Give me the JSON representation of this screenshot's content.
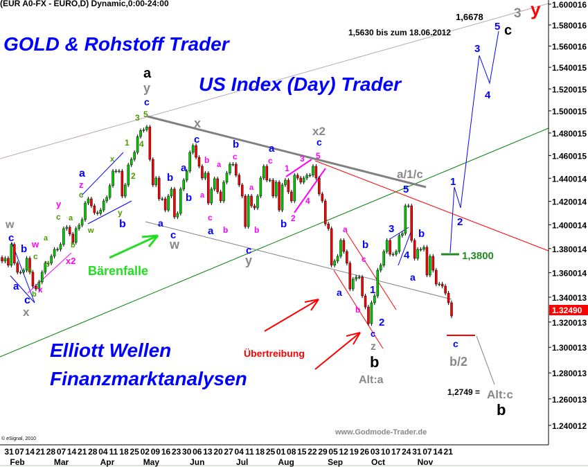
{
  "header": {
    "title": "(EUR A0-FX - EURO,D) Dynamic,0:00-24:00"
  },
  "titles": {
    "gold": "GOLD & Rohstoff Trader",
    "us_index": "US Index (Day) Trader",
    "elliott": "Elliott Wellen",
    "finanz": "Finanzmarktanalysen"
  },
  "copyright": "© eSignal, 2010",
  "watermark": "www.Godmode-Trader.de",
  "colors": {
    "up": "#00cc00",
    "down": "#ff0000",
    "blue": "#0000ff",
    "magenta": "#ff00ff",
    "gray": "#888888",
    "olive": "#4c9900",
    "red": "#ff0000",
    "green": "#008000"
  },
  "chart_data": {
    "type": "candlestick",
    "symbol": "EUR A0-FX",
    "yscale": "log",
    "ylim": [
      1.23,
      1.605
    ],
    "yticks": [
      "1.600016",
      "1.580016",
      "1.560016",
      "1.540015",
      "1.520015",
      "1.500015",
      "1.480015",
      "1.460015",
      "1.440014",
      "1.420014",
      "1.400014",
      "1.380014",
      "1.360014",
      "1.340013",
      "1.320013",
      "1.300013",
      "1.280013",
      "1.260013",
      "1.240012"
    ],
    "last_price": "1.32490",
    "xtick_days": [
      "31",
      "07",
      "14",
      "21",
      "28",
      "07",
      "14",
      "21",
      "28",
      "04",
      "11",
      "18",
      "25",
      "02",
      "09",
      "16",
      "23",
      "30",
      "06",
      "13",
      "20",
      "27",
      "04",
      "11",
      "18",
      "25",
      "01",
      "08",
      "15",
      "22",
      "29",
      "05",
      "12",
      "19",
      "26",
      "03",
      "10",
      "17",
      "24",
      "31",
      "07",
      "14",
      "21"
    ],
    "months": [
      "Feb",
      "Mar",
      "Apr",
      "May",
      "Jun",
      "Jul",
      "Aug",
      "Sep",
      "Oct",
      "Nov"
    ],
    "closes": [
      1.3696,
      1.3719,
      1.3662,
      1.3835,
      1.3679,
      1.3604,
      1.3604,
      1.3621,
      1.3719,
      1.3604,
      1.349,
      1.3467,
      1.3524,
      1.3604,
      1.3679,
      1.3679,
      1.3736,
      1.3794,
      1.3794,
      1.3835,
      1.3968,
      1.398,
      1.3922,
      1.3852,
      1.3968,
      1.3997,
      1.4044,
      1.4186,
      1.4222,
      1.4162,
      1.4103,
      1.4097,
      1.4126,
      1.4204,
      1.4234,
      1.4336,
      1.4463,
      1.4463,
      1.4463,
      1.4246,
      1.4342,
      1.4517,
      1.4566,
      1.4627,
      1.4768,
      1.4823,
      1.483,
      1.4855,
      1.4566,
      1.4342,
      1.4402,
      1.4222,
      1.4222,
      1.4126,
      1.4246,
      1.4306,
      1.4067,
      1.4097,
      1.4306,
      1.4384,
      1.4463,
      1.4627,
      1.4688,
      1.4584,
      1.4505,
      1.4402,
      1.4445,
      1.4186,
      1.4306,
      1.4396,
      1.4282,
      1.4204,
      1.4366,
      1.4445,
      1.4523,
      1.4523,
      1.4427,
      1.4342,
      1.4246,
      1.3985,
      1.4246,
      1.4162,
      1.4144,
      1.4246,
      1.4402,
      1.4505,
      1.4384,
      1.4384,
      1.4246,
      1.4366,
      1.4126,
      1.4342,
      1.4384,
      1.4282,
      1.4204,
      1.4427,
      1.4402,
      1.4366,
      1.4402,
      1.4427,
      1.4427,
      1.4505,
      1.4402,
      1.4264,
      1.4204,
      1.4008,
      1.3968,
      1.3662,
      1.3696,
      1.3736,
      1.3869,
      1.3776,
      1.3679,
      1.3467,
      1.3547,
      1.3564,
      1.3564,
      1.3411,
      1.3321,
      1.3188,
      1.3355,
      1.3411,
      1.3621,
      1.3662,
      1.3776,
      1.3869,
      1.3753,
      1.3753,
      1.3776,
      1.391,
      1.3927,
      1.4162,
      1.4162,
      1.3869,
      1.3719,
      1.3794,
      1.3794,
      1.3811,
      1.3581,
      1.3736,
      1.3621,
      1.3507,
      1.3507,
      1.349,
      1.3433,
      1.3355,
      1.3249
    ]
  },
  "annotations": [
    {
      "text": "w",
      "color": "#888888"
    },
    {
      "text": "c",
      "color": "#0000ff"
    },
    {
      "text": "b",
      "color": "#0000ff"
    },
    {
      "text": "a",
      "color": "#0000ff"
    },
    {
      "text": "c",
      "color": "#0000ff"
    },
    {
      "text": "x",
      "color": "#888888"
    },
    {
      "text": "b",
      "color": "#4c9900"
    },
    {
      "text": "a",
      "color": "#4c9900"
    },
    {
      "text": "x",
      "color": "#ff00ff"
    },
    {
      "text": "w",
      "color": "#ff00ff"
    },
    {
      "text": "c",
      "color": "#4c9900"
    },
    {
      "text": "b",
      "color": "#4c9900"
    },
    {
      "text": "x2",
      "color": "#ff00ff"
    },
    {
      "text": "a",
      "color": "#4c9900"
    },
    {
      "text": "y",
      "color": "#ff00ff"
    },
    {
      "text": "c",
      "color": "#4c9900"
    },
    {
      "text": "a",
      "color": "#4c9900"
    },
    {
      "text": "b",
      "color": "#4c9900"
    },
    {
      "text": "a",
      "color": "#0000ff"
    },
    {
      "text": "z",
      "color": "#ff00ff"
    },
    {
      "text": "c",
      "color": "#4c9900"
    },
    {
      "text": "x",
      "color": "#4c9900"
    },
    {
      "text": "w",
      "color": "#4c9900"
    },
    {
      "text": "y",
      "color": "#4c9900"
    },
    {
      "text": "b",
      "color": "#0000ff"
    },
    {
      "text": "1",
      "color": "#4c9900"
    },
    {
      "text": "2",
      "color": "#4c9900"
    },
    {
      "text": "3",
      "color": "#4c9900"
    },
    {
      "text": "4",
      "color": "#4c9900"
    },
    {
      "text": "5",
      "color": "#4c9900"
    },
    {
      "text": "a",
      "color": "#000000"
    },
    {
      "text": "y",
      "color": "#888888"
    },
    {
      "text": "c",
      "color": "#0000ff"
    },
    {
      "text": "x",
      "color": "#888888"
    },
    {
      "text": "c",
      "color": "#0000ff"
    },
    {
      "text": "a",
      "color": "#0000ff"
    },
    {
      "text": "b",
      "color": "#0000ff"
    },
    {
      "text": "b",
      "color": "#0000ff"
    },
    {
      "text": "a",
      "color": "#0000ff"
    },
    {
      "text": "c",
      "color": "#0000ff"
    },
    {
      "text": "w",
      "color": "#888888"
    },
    {
      "text": "b",
      "color": "#ff00ff"
    },
    {
      "text": "a",
      "color": "#ff00ff"
    },
    {
      "text": "a",
      "color": "#ff00ff"
    },
    {
      "text": "c",
      "color": "#ff00ff"
    },
    {
      "text": "a",
      "color": "#0000ff"
    },
    {
      "text": "b",
      "color": "#ff00ff"
    },
    {
      "text": "b",
      "color": "#0000ff"
    },
    {
      "text": "c",
      "color": "#ff00ff"
    },
    {
      "text": "a",
      "color": "#ff00ff"
    },
    {
      "text": "b",
      "color": "#ff00ff"
    },
    {
      "text": "c",
      "color": "#0000ff"
    },
    {
      "text": "y",
      "color": "#888888"
    },
    {
      "text": "a",
      "color": "#0000ff"
    },
    {
      "text": "c",
      "color": "#ff00ff"
    },
    {
      "text": "b",
      "color": "#0000ff"
    },
    {
      "text": "1",
      "color": "#ff00ff"
    },
    {
      "text": "3",
      "color": "#ff00ff"
    },
    {
      "text": "5",
      "color": "#ff00ff"
    },
    {
      "text": "c",
      "color": "#0000ff"
    },
    {
      "text": "x2",
      "color": "#888888"
    },
    {
      "text": "4",
      "color": "#ff00ff"
    },
    {
      "text": "2",
      "color": "#ff00ff"
    },
    {
      "text": "a/1/c",
      "color": "#888888"
    },
    {
      "text": "5",
      "color": "#0000ff"
    },
    {
      "text": "3",
      "color": "#0000ff"
    },
    {
      "text": "4",
      "color": "#0000ff"
    },
    {
      "text": "b",
      "color": "#0000ff"
    },
    {
      "text": "a",
      "color": "#0000ff"
    },
    {
      "text": "a",
      "color": "#ff00ff"
    },
    {
      "text": "b",
      "color": "#0000ff"
    },
    {
      "text": "c",
      "color": "#ff00ff"
    },
    {
      "text": "a",
      "color": "#0000ff"
    },
    {
      "text": "b",
      "color": "#ff00ff"
    },
    {
      "text": "1",
      "color": "#0000ff"
    },
    {
      "text": "2",
      "color": "#0000ff"
    },
    {
      "text": "c",
      "color": "#0000ff"
    },
    {
      "text": "z",
      "color": "#888888"
    },
    {
      "text": "b",
      "color": "#000000"
    },
    {
      "text": "Alt:a",
      "color": "#888888"
    },
    {
      "text": "1",
      "color": "#0000ff"
    },
    {
      "text": "2",
      "color": "#0000ff"
    },
    {
      "text": "3",
      "color": "#0000ff"
    },
    {
      "text": "4",
      "color": "#0000ff"
    },
    {
      "text": "5",
      "color": "#0000ff"
    },
    {
      "text": "c",
      "color": "#000000"
    },
    {
      "text": "3",
      "color": "#888888"
    },
    {
      "text": "y",
      "color": "#ff0000"
    },
    {
      "text": "1,6678",
      "color": "#000000"
    },
    {
      "text": "1,5630 bis zum 18.06.2012",
      "color": "#000000"
    },
    {
      "text": "1,3800",
      "color": "#228b22"
    },
    {
      "text": "c",
      "color": "#0000ff"
    },
    {
      "text": "b/2",
      "color": "#888888"
    },
    {
      "text": "1,2749 =",
      "color": "#000000"
    },
    {
      "text": "Alt:c",
      "color": "#888888"
    },
    {
      "text": "b",
      "color": "#000000"
    },
    {
      "text": "Bärenfalle",
      "color": "#22dd22"
    },
    {
      "text": "Übertreibung",
      "color": "#ff0000"
    }
  ]
}
